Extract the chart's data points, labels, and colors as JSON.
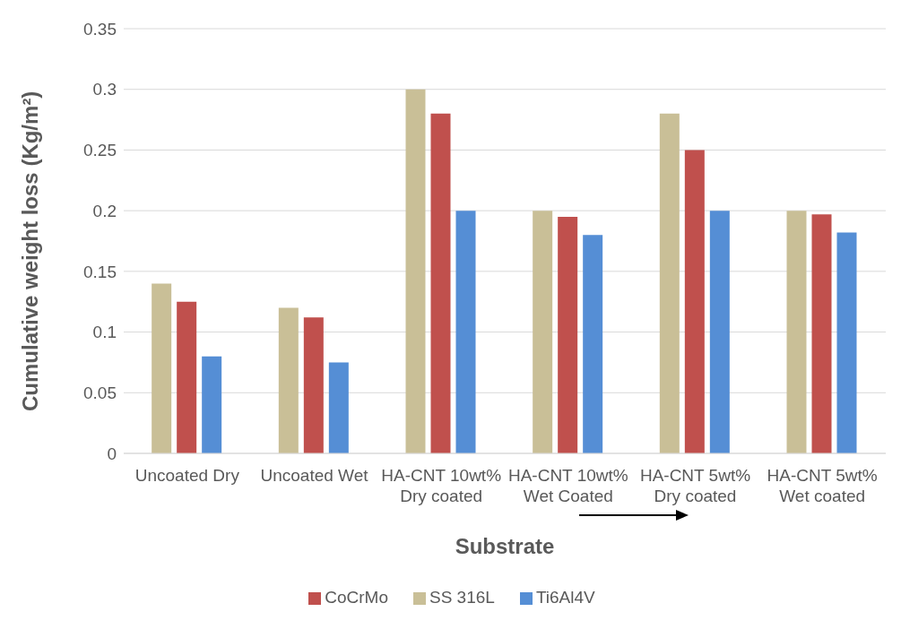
{
  "chart_data": {
    "type": "bar",
    "xlabel": "Substrate",
    "ylabel": "Cumulative weight loss (Kg/m²)",
    "categories": [
      "Uncoated Dry",
      "Uncoated Wet",
      "HA-CNT 10wt% Dry coated",
      "HA-CNT 10wt% Wet Coated",
      "HA-CNT 5wt% Dry coated",
      "HA-CNT 5wt% Wet coated"
    ],
    "series": [
      {
        "name": "SS 316L",
        "color": "#c9bf97",
        "values": [
          0.14,
          0.12,
          0.3,
          0.2,
          0.28,
          0.2
        ]
      },
      {
        "name": "CoCrMo",
        "color": "#c0504d",
        "values": [
          0.125,
          0.112,
          0.28,
          0.195,
          0.25,
          0.197
        ]
      },
      {
        "name": "Ti6Al4V",
        "color": "#558ed5",
        "values": [
          0.08,
          0.075,
          0.2,
          0.18,
          0.2,
          0.182
        ]
      }
    ],
    "ylim": [
      0,
      0.35
    ],
    "yticks": [
      0,
      0.05,
      0.1,
      0.15,
      0.2,
      0.25,
      0.3,
      0.35
    ],
    "grid": "y",
    "legend": "bottom"
  }
}
